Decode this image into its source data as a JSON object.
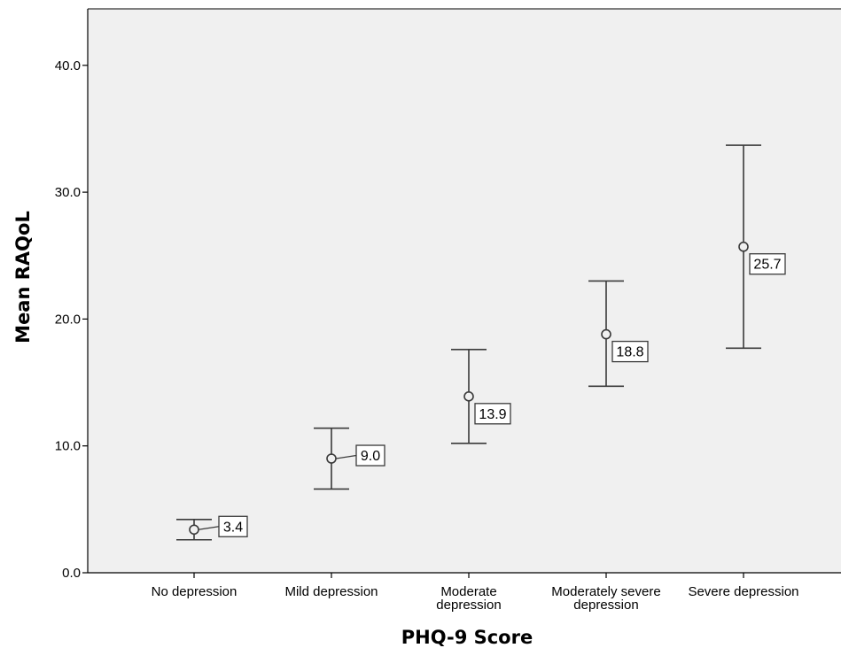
{
  "chart_data": {
    "type": "scatter",
    "subtype": "error-bar",
    "title": "",
    "xlabel": "PHQ-9 Score",
    "ylabel": "Mean RAQoL",
    "categories": [
      [
        "No depression"
      ],
      [
        "Mild depression"
      ],
      [
        "Moderate",
        "depression"
      ],
      [
        "Moderately severe",
        "depression"
      ],
      [
        "Severe depression"
      ]
    ],
    "means": [
      3.4,
      9.0,
      13.9,
      18.8,
      25.7
    ],
    "mean_labels": [
      "3.4",
      "9.0",
      "13.9",
      "18.8",
      "25.7"
    ],
    "lower": [
      2.6,
      6.6,
      10.2,
      14.7,
      17.7
    ],
    "upper": [
      4.2,
      11.4,
      17.6,
      23.0,
      33.7
    ],
    "ylim": [
      0,
      44
    ],
    "yticks": [
      0,
      10,
      20,
      30,
      40
    ],
    "ytick_labels": [
      "0.0",
      "10.0",
      "20.0",
      "30.0",
      "40.0"
    ],
    "grid": false,
    "legend": "none",
    "colors": {
      "plot_background": "#f0f0f0",
      "marks": "#3a3a3a"
    }
  }
}
